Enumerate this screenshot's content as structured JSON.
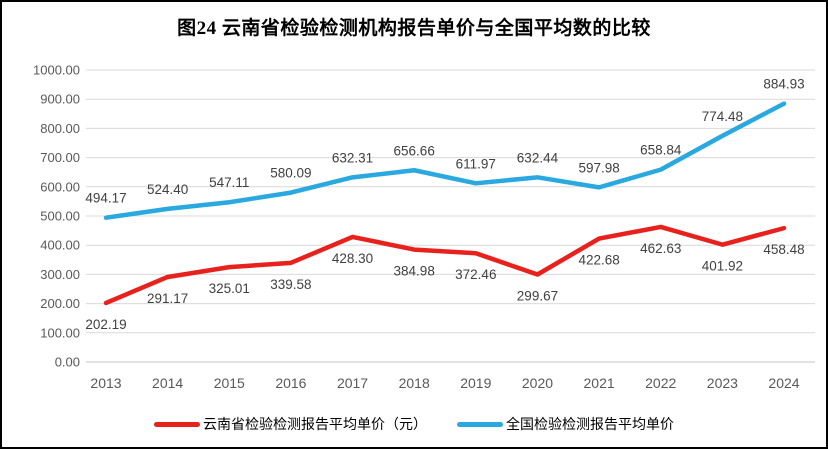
{
  "page": {
    "title": "图24 云南省检验检测机构报告单价与全国平均数的比较"
  },
  "chart_data": {
    "type": "line",
    "title": "图24 云南省检验检测机构报告单价与全国平均数的比较",
    "categories": [
      "2013",
      "2014",
      "2015",
      "2016",
      "2017",
      "2018",
      "2019",
      "2020",
      "2021",
      "2022",
      "2023",
      "2024"
    ],
    "series": [
      {
        "id": "yunnan",
        "name": "云南省检验检测报告平均单价（元）",
        "color": "#e8211c",
        "label_position": "below",
        "values": [
          202.19,
          291.17,
          325.01,
          339.58,
          428.3,
          384.98,
          372.46,
          299.67,
          422.68,
          462.63,
          401.92,
          458.48
        ]
      },
      {
        "id": "national",
        "name": "全国检验检测报告平均单价",
        "color": "#2aa8e0",
        "label_position": "above",
        "values": [
          494.17,
          524.4,
          547.11,
          580.09,
          632.31,
          656.66,
          611.97,
          632.44,
          597.98,
          658.84,
          774.48,
          884.93
        ]
      }
    ],
    "ylim": [
      0,
      1000
    ],
    "yticks": [
      0,
      100,
      200,
      300,
      400,
      500,
      600,
      700,
      800,
      900,
      1000
    ],
    "ytick_decimals": 2,
    "xlabel": "",
    "ylabel": "",
    "grid": "horizontal",
    "legend_position": "bottom",
    "colors": {
      "grid": "#d9d9d9",
      "axis_text": "#595959",
      "data_label": "#404040",
      "title_text": "#000000"
    }
  }
}
